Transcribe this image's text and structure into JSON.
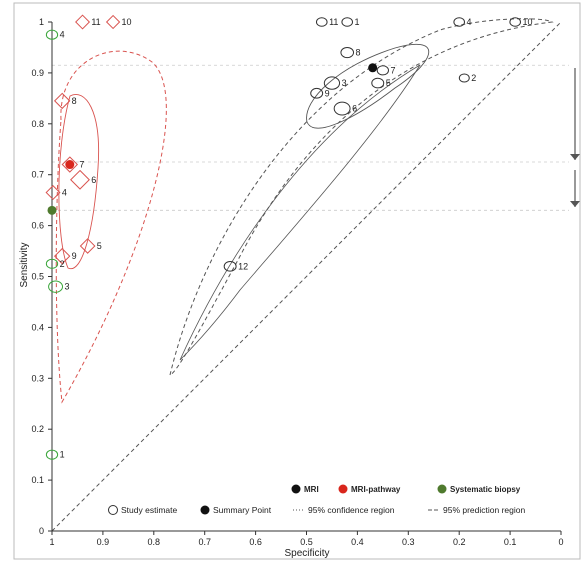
{
  "chart_data": {
    "type": "scatter",
    "title": "",
    "xlabel": "Specificity",
    "ylabel": "Sensitivity",
    "x_reversed": true,
    "xlim": [
      1,
      0
    ],
    "ylim": [
      0,
      1
    ],
    "x_ticks": [
      "1",
      "0.9",
      "0.8",
      "0.7",
      "0.6",
      "0.5",
      "0.4",
      "0.3",
      "0.2",
      "0.1",
      "0"
    ],
    "y_ticks": [
      "0",
      "0.1",
      "0.2",
      "0.3",
      "0.4",
      "0.5",
      "0.6",
      "0.7",
      "0.8",
      "0.9",
      "1"
    ],
    "colors": {
      "mri": "#111111",
      "mri_pathway": "#d9261c",
      "systematic_biopsy": "#4f7a2e",
      "mri_study": "#333333",
      "mri_pathway_study": "#d9534f",
      "systematic_biopsy_study": "#3aa63a",
      "region": "#555555",
      "mri_pathway_region": "#d9534f"
    },
    "legend": {
      "position": "bottom-right",
      "groups": [
        {
          "label": "MRI",
          "color": "#111111"
        },
        {
          "label": "MRI-pathway",
          "color": "#d9261c"
        },
        {
          "label": "Systematic biopsy",
          "color": "#4f7a2e"
        }
      ],
      "items": [
        {
          "label": "Study estimate",
          "symbol": "open-circle"
        },
        {
          "label": "Summary Point",
          "symbol": "filled-circle"
        },
        {
          "label": "95% confidence region",
          "symbol": "dotted-line"
        },
        {
          "label": "95% prediction region",
          "symbol": "dashed-line"
        }
      ]
    },
    "series": [
      {
        "name": "MRI",
        "marker": "circle",
        "points": [
          {
            "label": "1",
            "spec": 0.42,
            "sens": 1.0,
            "size": 0.7
          },
          {
            "label": "11",
            "spec": 0.47,
            "sens": 1.0,
            "size": 0.7
          },
          {
            "label": "4",
            "spec": 0.2,
            "sens": 1.0,
            "size": 0.7
          },
          {
            "label": "10",
            "spec": 0.09,
            "sens": 1.0,
            "size": 0.7
          },
          {
            "label": "8",
            "spec": 0.42,
            "sens": 0.94,
            "size": 1.0
          },
          {
            "label": "7",
            "spec": 0.35,
            "sens": 0.905,
            "size": 0.8
          },
          {
            "label": "2",
            "spec": 0.19,
            "sens": 0.89,
            "size": 0.6
          },
          {
            "label": "3",
            "spec": 0.45,
            "sens": 0.88,
            "size": 1.4
          },
          {
            "label": "5",
            "spec": 0.36,
            "sens": 0.88,
            "size": 0.9
          },
          {
            "label": "9",
            "spec": 0.48,
            "sens": 0.86,
            "size": 0.9
          },
          {
            "label": "6",
            "spec": 0.43,
            "sens": 0.83,
            "size": 1.5
          },
          {
            "label": "12",
            "spec": 0.65,
            "sens": 0.52,
            "size": 0.9
          }
        ],
        "summary": {
          "spec": 0.37,
          "sens": 0.91
        },
        "confidence_region": "ellipse",
        "prediction_region": "ellipse"
      },
      {
        "name": "MRI-pathway",
        "marker": "diamond",
        "points": [
          {
            "label": "11",
            "spec": 0.94,
            "sens": 1.0,
            "size": 0.8
          },
          {
            "label": "10",
            "spec": 0.88,
            "sens": 1.0,
            "size": 0.7
          },
          {
            "label": "8",
            "spec": 0.98,
            "sens": 0.845,
            "size": 1.0
          },
          {
            "label": "7",
            "spec": 0.965,
            "sens": 0.72,
            "size": 1.0
          },
          {
            "label": "6",
            "spec": 0.945,
            "sens": 0.69,
            "size": 1.5
          },
          {
            "label": "4",
            "spec": 0.998,
            "sens": 0.665,
            "size": 0.8
          },
          {
            "label": "5",
            "spec": 0.93,
            "sens": 0.56,
            "size": 0.9
          },
          {
            "label": "9",
            "spec": 0.98,
            "sens": 0.54,
            "size": 1.0
          }
        ],
        "summary": {
          "spec": 0.965,
          "sens": 0.72
        },
        "confidence_region": "ellipse",
        "prediction_region": "ellipse"
      },
      {
        "name": "Systematic biopsy",
        "marker": "circle",
        "points": [
          {
            "label": "4",
            "spec": 1.0,
            "sens": 0.975,
            "size": 0.8
          },
          {
            "label": "2",
            "spec": 1.0,
            "sens": 0.525,
            "size": 0.8
          },
          {
            "label": "3",
            "spec": 0.993,
            "sens": 0.48,
            "size": 1.2
          },
          {
            "label": "1",
            "spec": 1.0,
            "sens": 0.15,
            "size": 0.8
          }
        ],
        "summary": {
          "spec": 1.0,
          "sens": 0.63
        }
      }
    ]
  }
}
